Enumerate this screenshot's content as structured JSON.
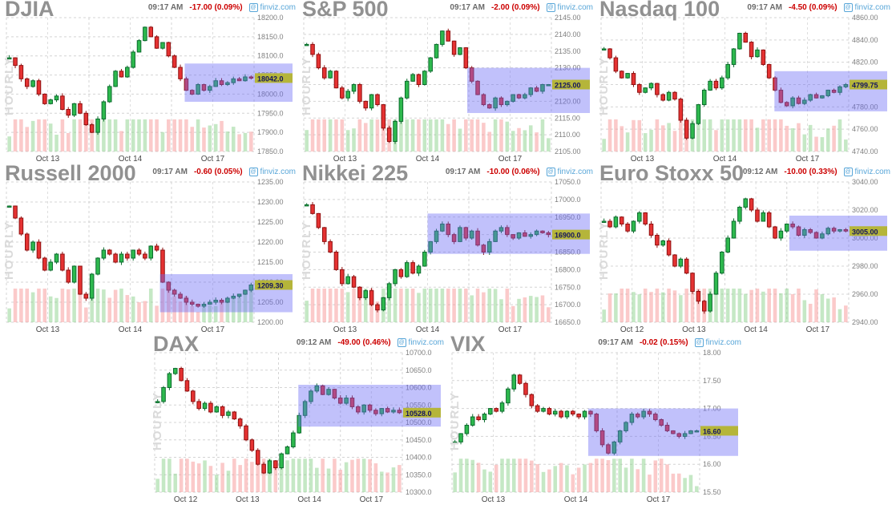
{
  "chart_data": [
    {
      "type": "candlestick",
      "title": "DJIA",
      "time": "09:17 AM",
      "change": "-17.00 (0.09%)",
      "source": "finviz.com",
      "timeframe": "HOURLY",
      "last_price": "18042.0",
      "ylim": [
        17850,
        18200
      ],
      "y_ticks": [
        "18200.0",
        "18150.0",
        "18100.0",
        "18050.0",
        "18000.0",
        "17950.0",
        "17900.0",
        "17850.0"
      ],
      "x_labels": [
        "Oct 13",
        "Oct 14",
        "Oct 17"
      ],
      "closes": [
        18095,
        18075,
        18040,
        18020,
        18035,
        18000,
        17975,
        17985,
        17995,
        17960,
        17945,
        17975,
        17950,
        17920,
        17900,
        17935,
        17980,
        18020,
        18060,
        18045,
        18070,
        18110,
        18140,
        18175,
        18150,
        18120,
        18135,
        18100,
        18070,
        18040,
        18010,
        18000,
        18025,
        18010,
        18020,
        18035,
        18025,
        18030,
        18040,
        18035,
        18045,
        18042
      ],
      "selection_box": {
        "start_frac": 0.72,
        "top": 18080,
        "bottom": 17980
      }
    },
    {
      "type": "candlestick",
      "title": "S&P 500",
      "time": "09:17 AM",
      "change": "-2.00 (0.09%)",
      "source": "finviz.com",
      "timeframe": "HOURLY",
      "last_price": "2125.00",
      "ylim": [
        2105,
        2145
      ],
      "y_ticks": [
        "2145.00",
        "2140.00",
        "2135.00",
        "2130.00",
        "2125.00",
        "2120.00",
        "2115.00",
        "2110.00",
        "2105.00"
      ],
      "x_labels": [
        "Oct 13",
        "Oct 14",
        "Oct 17"
      ],
      "closes": [
        2137,
        2134,
        2130,
        2127,
        2129,
        2124,
        2121,
        2123,
        2125,
        2120,
        2118,
        2122,
        2119,
        2112,
        2108,
        2114,
        2121,
        2126,
        2128,
        2125,
        2129,
        2133,
        2137,
        2141,
        2138,
        2134,
        2136,
        2130,
        2126,
        2122,
        2119,
        2118,
        2121,
        2119,
        2120,
        2122,
        2121,
        2122,
        2124,
        2123,
        2125,
        2125
      ],
      "selection_box": {
        "start_frac": 0.66,
        "top": 2130,
        "bottom": 2116.5
      }
    },
    {
      "type": "candlestick",
      "title": "Nasdaq 100",
      "time": "09:17 AM",
      "change": "-4.50 (0.09%)",
      "source": "finviz.com",
      "timeframe": "HOURLY",
      "last_price": "4799.75",
      "ylim": [
        4740,
        4860
      ],
      "y_ticks": [
        "4860.00",
        "4840.00",
        "4820.00",
        "4800.00",
        "4780.00",
        "4760.00",
        "4740.00"
      ],
      "x_labels": [
        "Oct 13",
        "Oct 14",
        "Oct 17"
      ],
      "closes": [
        4832,
        4824,
        4812,
        4806,
        4810,
        4800,
        4793,
        4797,
        4801,
        4791,
        4786,
        4793,
        4787,
        4768,
        4752,
        4765,
        4782,
        4795,
        4803,
        4797,
        4806,
        4818,
        4832,
        4846,
        4838,
        4825,
        4831,
        4818,
        4806,
        4795,
        4784,
        4781,
        4788,
        4783,
        4786,
        4791,
        4788,
        4790,
        4795,
        4793,
        4798,
        4800
      ],
      "selection_box": {
        "start_frac": 0.7,
        "top": 4812,
        "bottom": 4776
      }
    },
    {
      "type": "candlestick",
      "title": "Russell 2000",
      "time": "09:17 AM",
      "change": "-0.60 (0.05%)",
      "source": "finviz.com",
      "timeframe": "HOURLY",
      "last_price": "1209.30",
      "ylim": [
        1200,
        1235
      ],
      "y_ticks": [
        "1235.00",
        "1230.00",
        "1225.00",
        "1220.00",
        "1215.00",
        "1210.00",
        "1205.00",
        "1200.00"
      ],
      "x_labels": [
        "Oct 13",
        "Oct 14",
        "Oct 17"
      ],
      "closes": [
        1229,
        1226,
        1222,
        1218,
        1220,
        1216,
        1213,
        1215,
        1217,
        1213,
        1210,
        1214,
        1207,
        1206,
        1212,
        1216,
        1218,
        1217,
        1215,
        1217,
        1216,
        1218,
        1217,
        1216,
        1219,
        1218,
        1210,
        1208,
        1207,
        1206,
        1205,
        1204.5,
        1204,
        1204.5,
        1205,
        1205.5,
        1205,
        1206,
        1206.5,
        1207,
        1208,
        1209.3
      ],
      "selection_box": {
        "start_frac": 0.62,
        "top": 1212,
        "bottom": 1202.5
      }
    },
    {
      "type": "candlestick",
      "title": "Nikkei 225",
      "time": "09:17 AM",
      "change": "-10.00 (0.06%)",
      "source": "finviz.com",
      "timeframe": "HOURLY",
      "last_price": "16900.0",
      "ylim": [
        16650,
        17050
      ],
      "y_ticks": [
        "17050.0",
        "17000.0",
        "16950.0",
        "16900.0",
        "16850.0",
        "16800.0",
        "16750.0",
        "16700.0",
        "16650.0"
      ],
      "x_labels": [
        "Oct 13",
        "Oct 14",
        "Oct 17"
      ],
      "closes": [
        16985,
        16960,
        16920,
        16880,
        16850,
        16800,
        16760,
        16780,
        16750,
        16720,
        16740,
        16700,
        16685,
        16720,
        16760,
        16800,
        16780,
        16820,
        16790,
        16810,
        16850,
        16880,
        16910,
        16930,
        16900,
        16880,
        16920,
        16890,
        16910,
        16870,
        16850,
        16880,
        16910,
        16920,
        16900,
        16890,
        16905,
        16895,
        16900,
        16910,
        16905,
        16900
      ],
      "selection_box": {
        "start_frac": 0.5,
        "top": 16960,
        "bottom": 16845
      }
    },
    {
      "type": "candlestick",
      "title": "Euro Stoxx 50",
      "time": "09:12 AM",
      "change": "-10.00 (0.33%)",
      "source": "finviz.com",
      "timeframe": "HOURLY",
      "last_price": "3005.00",
      "ylim": [
        2940,
        3040
      ],
      "y_ticks": [
        "3040.00",
        "3020.00",
        "3000.00",
        "2980.00",
        "2960.00",
        "2940.00"
      ],
      "x_labels": [
        "Oct 12",
        "Oct 13",
        "Oct 14",
        "Oct 17"
      ],
      "closes": [
        3012,
        3008,
        3015,
        3010,
        3005,
        3012,
        3018,
        3010,
        3002,
        2995,
        2998,
        2988,
        2980,
        2985,
        2975,
        2962,
        2955,
        2948,
        2960,
        2975,
        2990,
        3000,
        3012,
        3022,
        3028,
        3020,
        3012,
        3018,
        3008,
        3000,
        3005,
        3010,
        3008,
        3002,
        3006,
        3004,
        3000,
        3003,
        3007,
        3005,
        3006,
        3005
      ],
      "selection_box": {
        "start_frac": 0.76,
        "top": 3016,
        "bottom": 2991
      }
    },
    {
      "type": "candlestick",
      "title": "DAX",
      "time": "09:12 AM",
      "change": "-49.00 (0.46%)",
      "source": "finviz.com",
      "timeframe": "HOURLY",
      "last_price": "10528.0",
      "ylim": [
        10300,
        10700
      ],
      "y_ticks": [
        "10700.0",
        "10650.0",
        "10600.0",
        "10550.0",
        "10500.0",
        "10450.0",
        "10400.0",
        "10350.0",
        "10300.0"
      ],
      "x_labels": [
        "Oct 12",
        "Oct 13",
        "Oct 14",
        "Oct 17"
      ],
      "closes": [
        10560,
        10600,
        10640,
        10655,
        10620,
        10590,
        10560,
        10540,
        10555,
        10530,
        10545,
        10520,
        10530,
        10510,
        10490,
        10450,
        10420,
        10380,
        10355,
        10390,
        10370,
        10410,
        10430,
        10470,
        10520,
        10560,
        10590,
        10605,
        10580,
        10595,
        10570,
        10555,
        10570,
        10545,
        10530,
        10550,
        10535,
        10525,
        10540,
        10530,
        10535,
        10528
      ],
      "selection_box": {
        "start_frac": 0.58,
        "top": 10608,
        "bottom": 10488
      }
    },
    {
      "type": "candlestick",
      "title": "VIX",
      "time": "09:17 AM",
      "change": "-0.02 (0.15%)",
      "source": "finviz.com",
      "timeframe": "HOURLY",
      "last_price": "16.60",
      "ylim": [
        15.5,
        18
      ],
      "y_ticks": [
        "18.00",
        "17.50",
        "17.00",
        "16.50",
        "16.00",
        "15.50"
      ],
      "x_labels": [
        "Oct 13",
        "Oct 14",
        "Oct 17"
      ],
      "closes": [
        16.4,
        16.55,
        16.7,
        16.85,
        16.8,
        16.9,
        17.0,
        16.95,
        17.1,
        17.35,
        17.6,
        17.45,
        17.25,
        17.05,
        16.95,
        17.0,
        16.9,
        16.95,
        16.85,
        16.95,
        16.9,
        16.85,
        16.95,
        16.9,
        16.6,
        16.35,
        16.2,
        16.4,
        16.6,
        16.75,
        16.9,
        16.85,
        16.95,
        16.9,
        16.8,
        16.7,
        16.6,
        16.55,
        16.5,
        16.55,
        16.6,
        16.6
      ],
      "selection_box": {
        "start_frac": 0.55,
        "top": 17.0,
        "bottom": 16.15
      }
    }
  ],
  "style": {
    "up_color": "#2eb94e",
    "up_border": "#0b6b2d",
    "down_color": "#e53232",
    "down_border": "#8f1010",
    "selection_color": "rgba(108,108,245,0.42)",
    "price_label_bg": "#b5b53a",
    "price_label_text": "#15155e",
    "link_color": "#58a6d8",
    "change_color": "#cc0000"
  }
}
